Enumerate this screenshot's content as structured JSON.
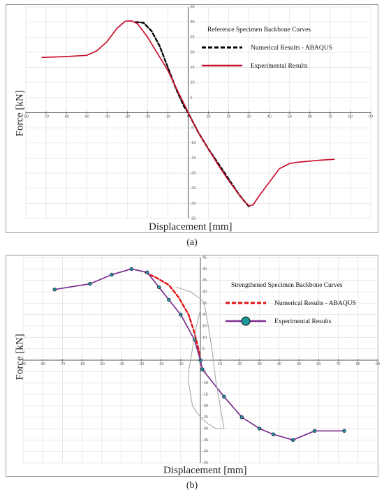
{
  "captions": {
    "a": "(a)",
    "b": "(b)"
  },
  "chart_data": [
    {
      "type": "line",
      "legend_title": "Reference Specimen Backbone Curves",
      "xlabel": "Displacement [mm]",
      "ylabel": "Force [kN]",
      "xlim": [
        -80,
        90
      ],
      "ylim": [
        -35,
        35
      ],
      "xticks": [
        -80,
        -70,
        -60,
        -50,
        -40,
        -30,
        -20,
        -10,
        0,
        10,
        20,
        30,
        40,
        50,
        60,
        70,
        80,
        90
      ],
      "yticks": [
        -35,
        -30,
        -25,
        -20,
        -15,
        -10,
        -5,
        0,
        5,
        10,
        15,
        20,
        25,
        30,
        35
      ],
      "grid": true,
      "legend_position": "top-right",
      "series": [
        {
          "name": "Numerical Results - ABAQUS",
          "color": "#000000",
          "style": "dashed",
          "points": [
            [
              -26,
              30
            ],
            [
              -22,
              29.8
            ],
            [
              -18,
              27
            ],
            [
              -14,
              22
            ],
            [
              -10,
              15
            ],
            [
              -6,
              8
            ],
            [
              -2,
              2
            ],
            [
              0,
              0
            ],
            [
              5,
              -6.5
            ],
            [
              10,
              -12
            ],
            [
              15,
              -17
            ],
            [
              20,
              -22
            ],
            [
              25,
              -27
            ],
            [
              28,
              -29.5
            ],
            [
              30,
              -31
            ]
          ]
        },
        {
          "name": "Experimental Results",
          "color": "#c8102e",
          "style": "solid",
          "points": [
            [
              -72,
              18.3
            ],
            [
              -60,
              18.6
            ],
            [
              -50,
              19
            ],
            [
              -45,
              20.5
            ],
            [
              -40,
              23.5
            ],
            [
              -35,
              28
            ],
            [
              -31,
              30.3
            ],
            [
              -28,
              30.4
            ],
            [
              -25,
              29.5
            ],
            [
              -20,
              25
            ],
            [
              -15,
              19.5
            ],
            [
              -10,
              14
            ],
            [
              -5,
              7
            ],
            [
              -1,
              1.5
            ],
            [
              0,
              0
            ],
            [
              5,
              -6.5
            ],
            [
              10,
              -12
            ],
            [
              15,
              -17.5
            ],
            [
              20,
              -22.5
            ],
            [
              25,
              -27
            ],
            [
              28,
              -29.5
            ],
            [
              30,
              -30.8
            ],
            [
              32,
              -30.5
            ],
            [
              35,
              -27.5
            ],
            [
              40,
              -23
            ],
            [
              45,
              -18.5
            ],
            [
              50,
              -16.8
            ],
            [
              55,
              -16.3
            ],
            [
              60,
              -16
            ],
            [
              65,
              -15.7
            ],
            [
              72,
              -15.4
            ]
          ]
        }
      ]
    },
    {
      "type": "line",
      "legend_title": "Strengthened Specimen Backbone Curves",
      "xlabel": "Displacement [mm]",
      "ylabel": "Force [kN]",
      "xlim": [
        -90,
        90
      ],
      "ylim": [
        -45,
        45
      ],
      "xticks": [
        -90,
        -80,
        -70,
        -60,
        -50,
        -40,
        -30,
        -20,
        -10,
        0,
        10,
        20,
        30,
        40,
        50,
        60,
        70,
        80,
        90
      ],
      "yticks": [
        -45,
        -40,
        -35,
        -30,
        -25,
        -20,
        -15,
        -10,
        -5,
        0,
        5,
        10,
        15,
        20,
        25,
        30,
        35,
        40,
        45
      ],
      "grid": true,
      "legend_position": "top-right",
      "series": [
        {
          "name": "Numerical Results - ABAQUS",
          "color": "#e01010",
          "style": "dashed",
          "points": [
            [
              -28,
              38.5
            ],
            [
              -22,
              36
            ],
            [
              -16,
              33
            ],
            [
              -11,
              27.5
            ],
            [
              -6,
              20
            ],
            [
              -3,
              12
            ],
            [
              -1,
              5
            ],
            [
              0,
              0
            ]
          ]
        },
        {
          "name": "Experimental Results",
          "color": "#7b2d8e",
          "marker_color": "#1a9a9a",
          "style": "solid",
          "points": [
            [
              -74,
              31
            ],
            [
              -56,
              33.5
            ],
            [
              -45,
              37.5
            ],
            [
              -35,
              40
            ],
            [
              -27,
              38.5
            ],
            [
              -21,
              32
            ],
            [
              -16,
              26.5
            ],
            [
              -10,
              20
            ],
            [
              -3,
              9
            ],
            [
              0,
              0
            ],
            [
              1,
              -4
            ],
            [
              12,
              -16
            ],
            [
              21,
              -25
            ],
            [
              30,
              -30
            ],
            [
              37,
              -32.5
            ],
            [
              47,
              -35
            ],
            [
              58,
              -31
            ],
            [
              73,
              -31
            ]
          ]
        },
        {
          "name": "",
          "color": "#a8a8a8",
          "style": "solid",
          "points": [
            [
              -12,
              32
            ],
            [
              -5,
              30
            ],
            [
              0,
              27
            ],
            [
              2,
              25
            ],
            [
              4,
              15
            ],
            [
              6,
              4
            ],
            [
              8,
              -10
            ],
            [
              10,
              -20
            ],
            [
              12,
              -30
            ],
            [
              8,
              -30
            ],
            [
              4,
              -28
            ],
            [
              0,
              -25
            ],
            [
              -4,
              -20
            ],
            [
              -6,
              -10
            ],
            [
              -6,
              -5
            ],
            [
              -4,
              5
            ],
            [
              -2,
              15
            ],
            [
              0,
              22
            ]
          ]
        }
      ]
    }
  ]
}
